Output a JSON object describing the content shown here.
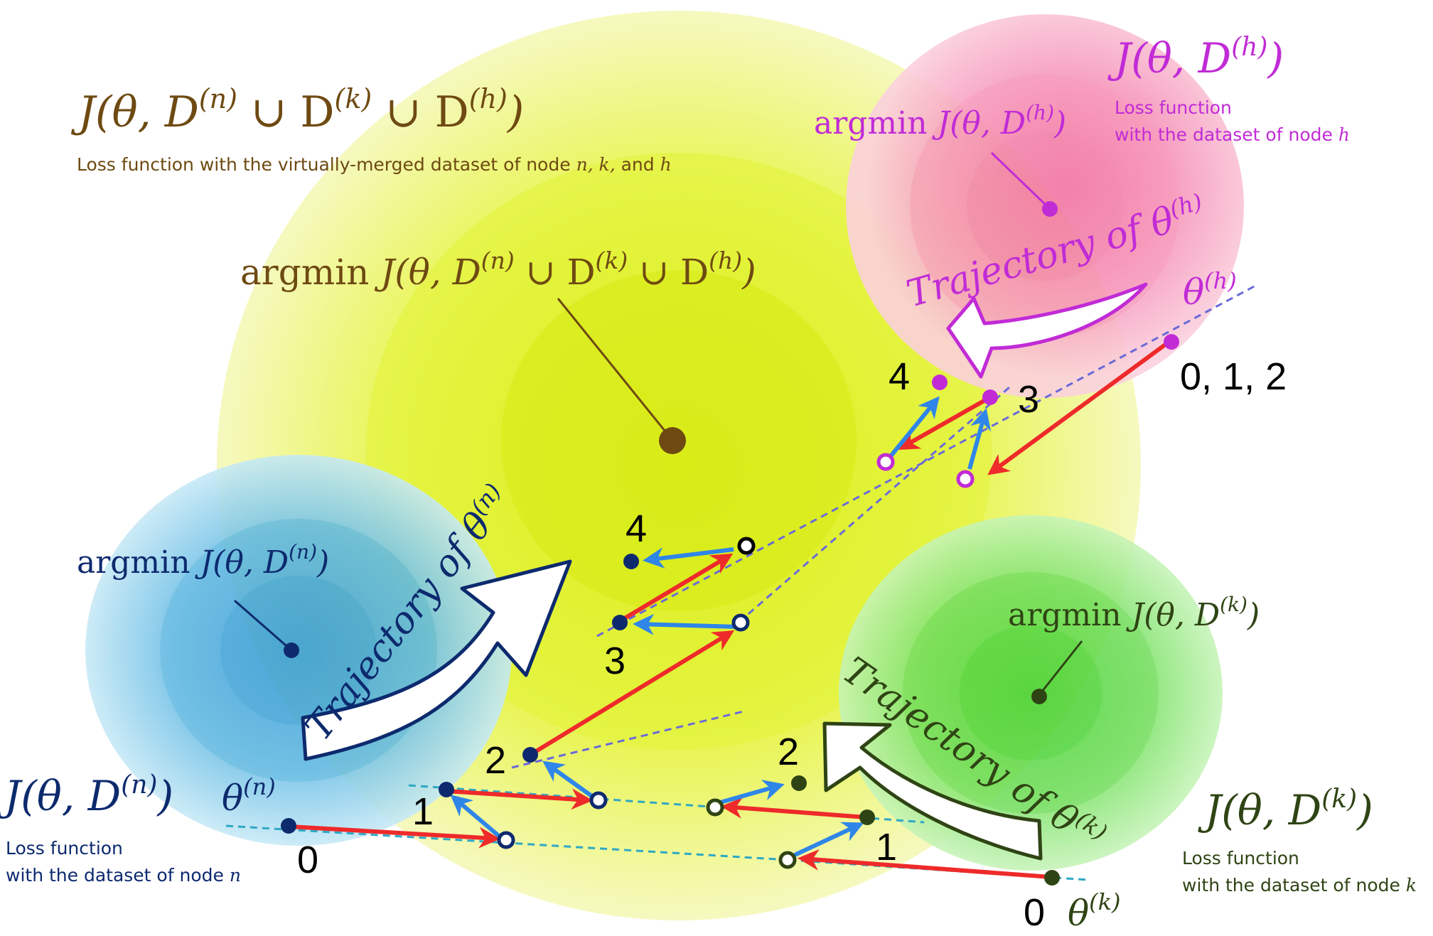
{
  "colors": {
    "merged": "#6e4a12",
    "node_n": "#0d2a6e",
    "node_k": "#2f4414",
    "node_h": "#c12bd6",
    "update_arrow": "#ee2a2a",
    "step_arrow": "#2f86e8",
    "dashed": "#6a6ad8"
  },
  "merged": {
    "formula_pre": "J(θ, D",
    "sup_n": "(n)",
    "union": " ∪ D",
    "sup_k": "(k)",
    "sup_h": "(h)",
    "close": ")",
    "caption_main": "Loss function with the virtually-merged dataset of node ",
    "caption_nodes": "n, k,",
    "caption_and": " and ",
    "caption_h": "h",
    "argmin_word": "argmin "
  },
  "node_n": {
    "formula_pre": "J(θ, D",
    "sup": "(n)",
    "close": ")",
    "caption_line1": "Loss function",
    "caption_line2": "with the dataset of node ",
    "caption_node": "n",
    "argmin_word": "argmin ",
    "theta": "θ",
    "trajectory_label": "Trajectory of θ",
    "trajectory_sup": "(n)"
  },
  "node_k": {
    "formula_pre": "J(θ, D",
    "sup": "(k)",
    "close": ")",
    "caption_line1": "Loss function",
    "caption_line2": "with the dataset of node ",
    "caption_node": "k",
    "argmin_word": "argmin ",
    "theta": "θ",
    "trajectory_label": "Trajectory of θ",
    "trajectory_sup": "(k)"
  },
  "node_h": {
    "formula_pre": "J(θ, D",
    "sup": "(h)",
    "close": ")",
    "caption_line1": "Loss function",
    "caption_line2": "with the dataset of node ",
    "caption_node": "h",
    "argmin_word": "argmin ",
    "theta": "θ",
    "trajectory_label": "Trajectory of ",
    "trajectory_theta": "θ",
    "trajectory_sup": "(h)"
  },
  "step_labels": {
    "n0": "0",
    "n1": "1",
    "n2": "2",
    "n3": "3",
    "n4": "4",
    "k0": "0",
    "k1": "1",
    "k2": "2",
    "h012": "0, 1, 2",
    "h3": "3",
    "h4": "4"
  }
}
